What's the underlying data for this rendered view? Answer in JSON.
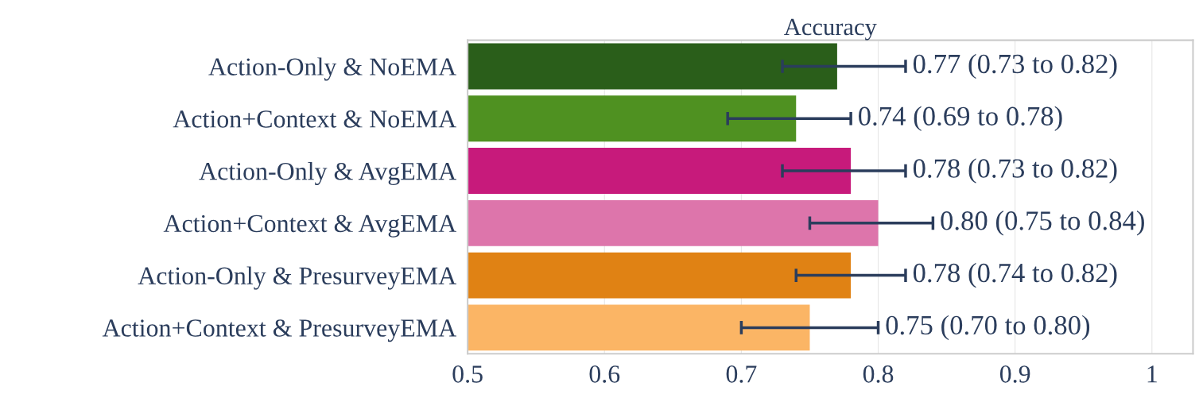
{
  "chart_data": {
    "type": "bar",
    "orientation": "horizontal",
    "title": "Accuracy",
    "categories": [
      "Action-Only & NoEMA",
      "Action+Context & NoEMA",
      "Action-Only & AvgEMA",
      "Action+Context & AvgEMA",
      "Action-Only & PresurveyEMA",
      "Action+Context & PresurveyEMA"
    ],
    "values": [
      0.77,
      0.74,
      0.78,
      0.8,
      0.78,
      0.75
    ],
    "errors": [
      [
        0.73,
        0.82
      ],
      [
        0.69,
        0.78
      ],
      [
        0.73,
        0.82
      ],
      [
        0.75,
        0.84
      ],
      [
        0.74,
        0.82
      ],
      [
        0.7,
        0.8
      ]
    ],
    "colors": [
      "#2a5e1a",
      "#4f9121",
      "#c71a7b",
      "#dd75ab",
      "#e08214",
      "#fbb565"
    ],
    "value_labels": [
      "0.77 (0.73 to 0.82)",
      "0.74 (0.69 to 0.78)",
      "0.78 (0.73 to 0.82)",
      "0.80 (0.75 to 0.84)",
      "0.78 (0.74 to 0.82)",
      "0.75 (0.70 to 0.80)"
    ],
    "xlim": [
      0.5,
      1.03
    ],
    "xticks": [
      0.5,
      0.6,
      0.7,
      0.8,
      0.9,
      1
    ],
    "grid": "x"
  }
}
